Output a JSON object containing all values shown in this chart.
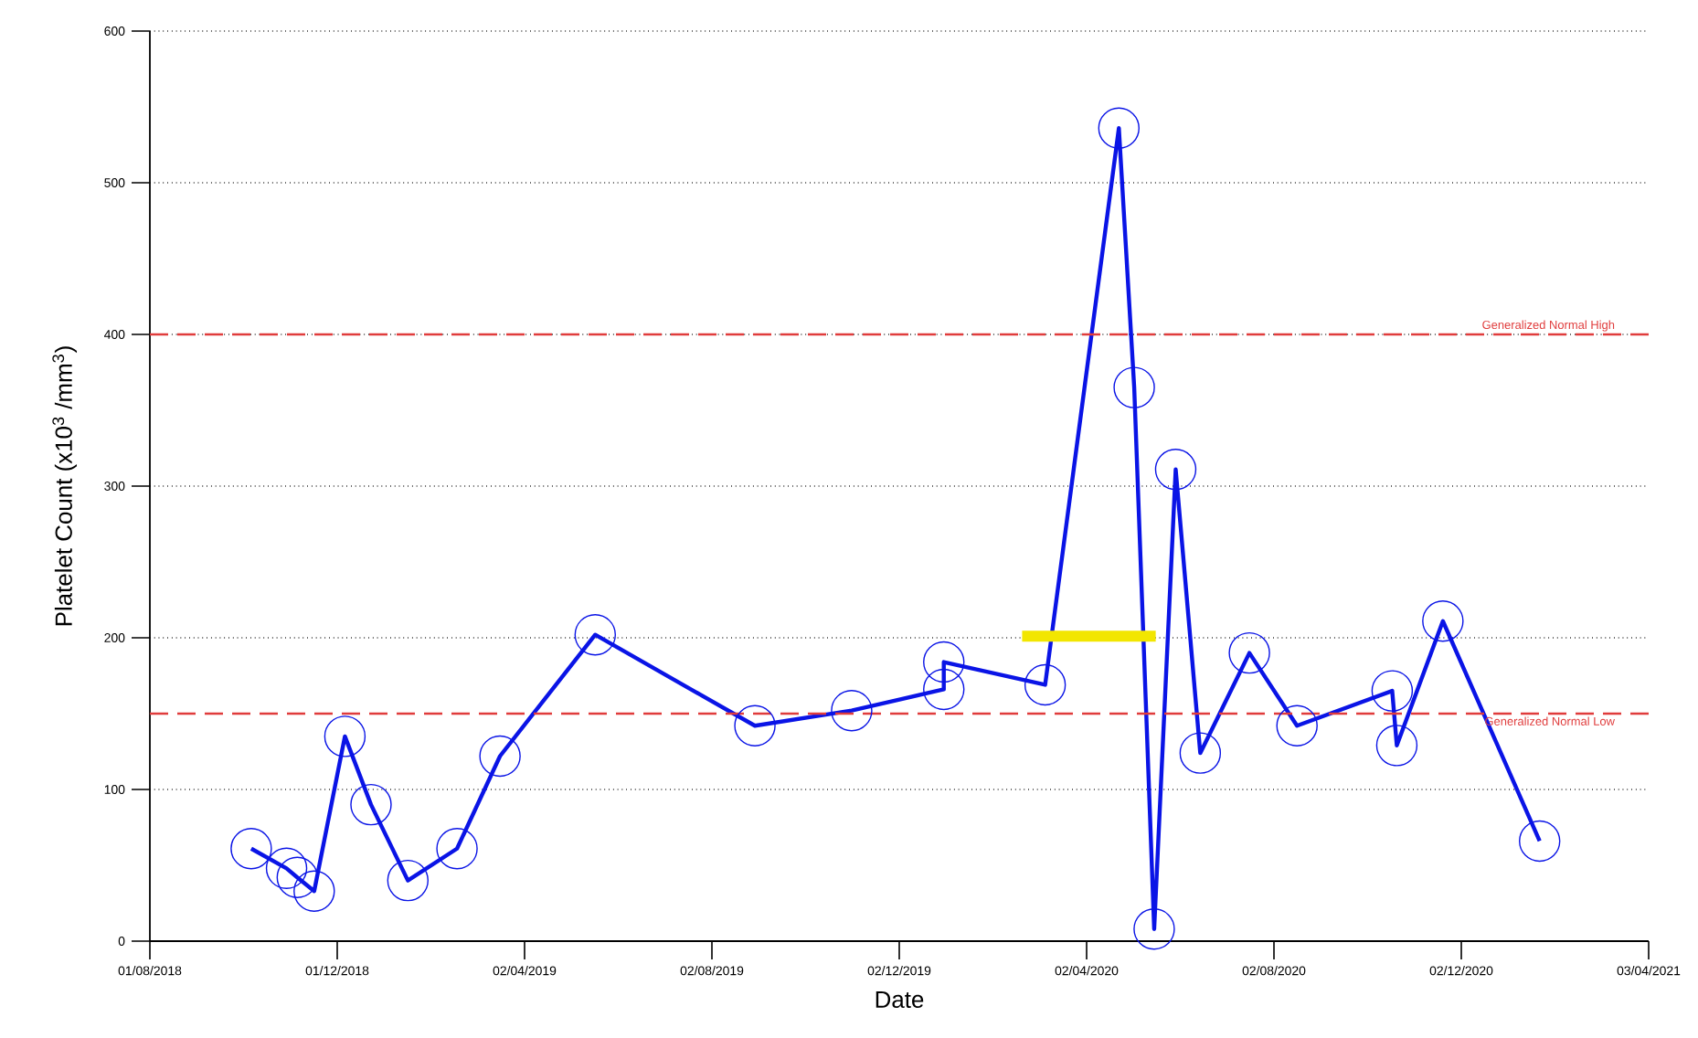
{
  "chart_data": {
    "type": "line",
    "xlabel": "Date",
    "ylabel": "Platelet Count (x10$^{3}$ /mm$^{3}$)",
    "xlim": [
      "2018-08-01",
      "2021-04-03"
    ],
    "xticks": [
      {
        "value": "2018-08-01",
        "label": "01/08/2018"
      },
      {
        "value": "2018-12-01",
        "label": "01/12/2018"
      },
      {
        "value": "2019-04-02",
        "label": "02/04/2019"
      },
      {
        "value": "2019-08-02",
        "label": "02/08/2019"
      },
      {
        "value": "2019-12-02",
        "label": "02/12/2019"
      },
      {
        "value": "2020-04-02",
        "label": "02/04/2020"
      },
      {
        "value": "2020-08-02",
        "label": "02/08/2020"
      },
      {
        "value": "2020-12-02",
        "label": "02/12/2020"
      },
      {
        "value": "2021-04-03",
        "label": "03/04/2021"
      }
    ],
    "ylim": [
      0,
      600
    ],
    "yticks": [
      0,
      100,
      200,
      300,
      400,
      500,
      600
    ],
    "grid": "y",
    "marker": "circle",
    "line_style": "solid",
    "series": [
      {
        "color": "#0a14e6",
        "x": [
          "2018-10-06",
          "2018-10-29",
          "2018-11-05",
          "2018-11-16",
          "2018-12-06",
          "2018-12-23",
          "2019-01-16",
          "2019-02-17",
          "2019-03-17",
          "2019-05-18",
          "2019-08-30",
          "2019-11-01",
          "2019-12-31",
          "2019-12-31",
          "2020-03-06",
          "2020-04-23",
          "2020-05-03",
          "2020-05-16",
          "2020-05-30",
          "2020-06-15",
          "2020-07-17",
          "2020-08-17",
          "2020-10-18",
          "2020-10-21",
          "2020-11-20",
          "2021-01-22"
        ],
        "values": [
          61,
          48,
          42,
          33,
          135,
          90,
          40,
          61,
          122,
          202,
          142,
          152,
          166,
          184,
          169,
          536,
          365,
          8,
          311,
          124,
          190,
          142,
          165,
          129,
          211,
          66
        ]
      },
      {
        "type": "line",
        "marker": "none",
        "color": "#f2e600",
        "x": [
          "2020-02-20",
          "2020-05-17"
        ],
        "values": [
          201,
          201
        ]
      }
    ],
    "ref_lines": [
      {
        "axis": "y",
        "value": 400,
        "label": "Generalized Normal High",
        "color": "#e03c3c",
        "line_style": "dashed"
      },
      {
        "axis": "y",
        "value": 150,
        "label": "Generalized Normal Low",
        "color": "#e03c3c",
        "line_style": "dashed"
      }
    ]
  }
}
